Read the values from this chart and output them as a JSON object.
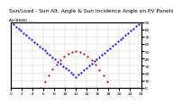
{
  "title": "Sun/Load - Sun Alt. Angle & Sun Incidence Angle on PV Panels",
  "subtitle": "Alt(8888) ---",
  "bg_color": "#ffffff",
  "grid_color": "#888888",
  "blue_color": "#0000ff",
  "red_color": "#cc0000",
  "x_start": 0,
  "x_end": 24,
  "y_min": 0,
  "y_max": 90,
  "x_ticks": [
    0,
    2,
    4,
    6,
    8,
    10,
    12,
    14,
    16,
    18,
    20,
    22,
    24
  ],
  "y_ticks": [
    0,
    10,
    20,
    30,
    40,
    50,
    60,
    70,
    80,
    90
  ],
  "sunrise": 5.5,
  "sunset": 18.5,
  "peak_altitude": 50,
  "solar_noon": 12,
  "incidence_night": 90,
  "incidence_noon": 15,
  "title_fontsize": 4.2,
  "tick_fontsize": 3.2,
  "legend_fontsize": 3.2,
  "line_width": 0.7,
  "marker_size": 1.2,
  "marker_every_blue": 12,
  "marker_every_red": 18
}
